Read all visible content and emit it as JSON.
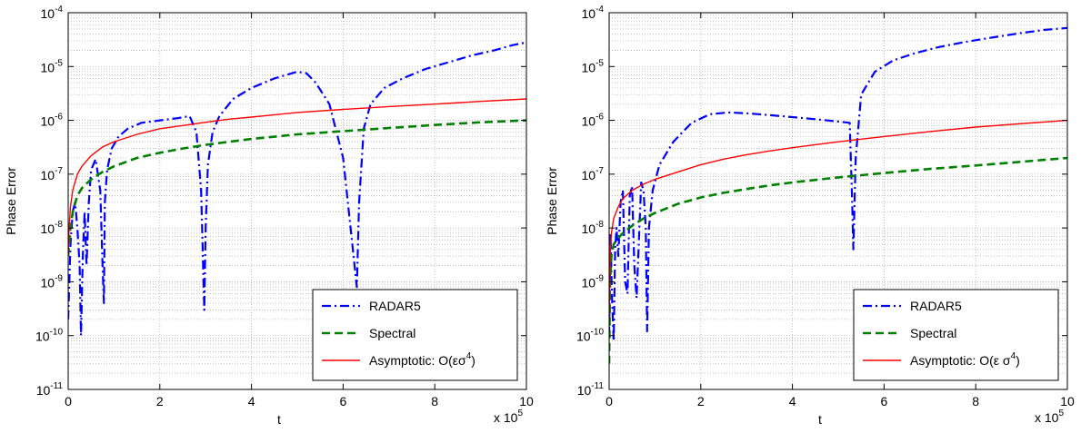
{
  "chart_data": [
    {
      "type": "line",
      "xlabel": "t",
      "ylabel": "Phase Error",
      "x_multiplier_label": "x 10",
      "x_multiplier_exp": "5",
      "xlim": [
        0,
        10
      ],
      "ylim_log10": [
        -11,
        -4
      ],
      "yscale": "log",
      "grid": true,
      "legend_position": "lower-right",
      "x_ticks": [
        "0",
        "2",
        "4",
        "6",
        "8",
        "10"
      ],
      "y_ticks": [
        {
          "base": "10",
          "exp": "-11"
        },
        {
          "base": "10",
          "exp": "-10"
        },
        {
          "base": "10",
          "exp": "-9"
        },
        {
          "base": "10",
          "exp": "-8"
        },
        {
          "base": "10",
          "exp": "-7"
        },
        {
          "base": "10",
          "exp": "-6"
        },
        {
          "base": "10",
          "exp": "-5"
        },
        {
          "base": "10",
          "exp": "-4"
        }
      ],
      "series": [
        {
          "name": "RADAR5",
          "color": "#0000ff",
          "dash": "dashdot",
          "x": [
            0.0,
            0.05,
            0.1,
            0.15,
            0.2,
            0.25,
            0.28,
            0.32,
            0.36,
            0.4,
            0.45,
            0.5,
            0.6,
            0.7,
            0.75,
            0.78,
            0.8,
            0.85,
            0.95,
            1.1,
            1.3,
            1.6,
            2.0,
            2.4,
            2.65,
            2.8,
            2.9,
            2.97,
            3.0,
            3.05,
            3.15,
            3.3,
            3.6,
            4.0,
            4.5,
            5.0,
            5.2,
            5.4,
            5.7,
            6.0,
            6.2,
            6.3,
            6.35,
            6.45,
            6.6,
            6.9,
            7.3,
            7.8,
            8.3,
            8.8,
            9.3,
            9.7,
            10.0
          ],
          "y": [
            2e-10,
            5e-09,
            2e-08,
            3e-08,
            1e-08,
            2e-09,
            1e-10,
            3e-09,
            2e-08,
            2e-09,
            3e-08,
            1.2e-07,
            1.9e-07,
            5e-08,
            2e-09,
            4e-10,
            3e-08,
            1.2e-07,
            3e-07,
            5e-07,
            7e-07,
            9e-07,
            1e-06,
            1.1e-06,
            1.2e-06,
            6e-07,
            5e-08,
            3e-10,
            1e-08,
            1.5e-07,
            6e-07,
            1.2e-06,
            2.5e-06,
            4e-06,
            6e-06,
            8e-06,
            7.5e-06,
            5e-06,
            2e-06,
            2e-07,
            5e-09,
            8e-10,
            3e-08,
            7e-07,
            2e-06,
            4e-06,
            6e-06,
            9e-06,
            1.2e-05,
            1.6e-05,
            2e-05,
            2.5e-05,
            2.8e-05
          ]
        },
        {
          "name": "Spectral",
          "color": "#008000",
          "dash": "dashed",
          "x": [
            0.0,
            0.02,
            0.05,
            0.1,
            0.2,
            0.3,
            0.5,
            0.75,
            1.0,
            1.5,
            2.0,
            2.5,
            3.0,
            3.5,
            4.0,
            5.0,
            6.0,
            7.0,
            8.0,
            9.0,
            10.0
          ],
          "y": [
            3e-09,
            5e-09,
            1e-08,
            2e-08,
            4e-08,
            5.5e-08,
            8e-08,
            1.1e-07,
            1.4e-07,
            2e-07,
            2.5e-07,
            3e-07,
            3.5e-07,
            4e-07,
            4.5e-07,
            5.5e-07,
            6.3e-07,
            7.2e-07,
            8.2e-07,
            9.2e-07,
            1e-06
          ]
        },
        {
          "name": "Asymptotic: O(εσ",
          "name_exp": "4",
          "name_tail": ")",
          "color": "#ff0000",
          "dash": "solid",
          "x": [
            0.0,
            0.02,
            0.05,
            0.1,
            0.2,
            0.3,
            0.5,
            0.75,
            1.0,
            1.5,
            2.0,
            2.5,
            3.0,
            3.5,
            4.0,
            5.0,
            6.0,
            7.0,
            8.0,
            9.0,
            10.0
          ],
          "y": [
            3e-09,
            1e-08,
            2.5e-08,
            5e-08,
            1e-07,
            1.4e-07,
            2.2e-07,
            3.2e-07,
            4e-07,
            5.5e-07,
            7e-07,
            8e-07,
            9.2e-07,
            1.05e-06,
            1.15e-06,
            1.4e-06,
            1.6e-06,
            1.8e-06,
            2e-06,
            2.25e-06,
            2.5e-06
          ]
        }
      ]
    },
    {
      "type": "line",
      "xlabel": "t",
      "ylabel": "Phase Error",
      "x_multiplier_label": "x 10",
      "x_multiplier_exp": "5",
      "xlim": [
        0,
        10
      ],
      "ylim_log10": [
        -11,
        -4
      ],
      "yscale": "log",
      "grid": true,
      "legend_position": "lower-right",
      "x_ticks": [
        "0",
        "2",
        "4",
        "6",
        "8",
        "10"
      ],
      "y_ticks": [
        {
          "base": "10",
          "exp": "-11"
        },
        {
          "base": "10",
          "exp": "-10"
        },
        {
          "base": "10",
          "exp": "-9"
        },
        {
          "base": "10",
          "exp": "-8"
        },
        {
          "base": "10",
          "exp": "-7"
        },
        {
          "base": "10",
          "exp": "-6"
        },
        {
          "base": "10",
          "exp": "-5"
        },
        {
          "base": "10",
          "exp": "-4"
        }
      ],
      "series": [
        {
          "name": "RADAR5",
          "color": "#0000ff",
          "dash": "dashdot",
          "x": [
            0.0,
            0.03,
            0.06,
            0.1,
            0.13,
            0.16,
            0.2,
            0.25,
            0.3,
            0.35,
            0.4,
            0.45,
            0.5,
            0.55,
            0.6,
            0.7,
            0.75,
            0.8,
            0.83,
            0.87,
            0.95,
            1.1,
            1.4,
            1.8,
            2.2,
            2.6,
            3.0,
            3.5,
            4.0,
            4.5,
            5.0,
            5.25,
            5.3,
            5.33,
            5.38,
            5.5,
            5.8,
            6.2,
            6.7,
            7.2,
            7.8,
            8.4,
            9.0,
            9.5,
            10.0
          ],
          "y": [
            1e-10,
            8e-09,
            6e-10,
            8e-11,
            4e-09,
            1e-08,
            3e-09,
            3e-08,
            5e-08,
            1e-09,
            6e-10,
            4e-08,
            6e-08,
            2e-09,
            5e-10,
            7e-08,
            5e-08,
            1e-08,
            1.2e-10,
            1e-08,
            5e-08,
            1.5e-07,
            4e-07,
            9e-07,
            1.3e-06,
            1.4e-06,
            1.35e-06,
            1.25e-06,
            1.15e-06,
            1.05e-06,
            9.5e-07,
            9e-07,
            4e-08,
            4e-09,
            2e-07,
            3e-06,
            8e-06,
            1.3e-05,
            1.8e-05,
            2.3e-05,
            2.9e-05,
            3.5e-05,
            4.2e-05,
            4.8e-05,
            5.2e-05
          ]
        },
        {
          "name": "Spectral",
          "color": "#008000",
          "dash": "dashed",
          "x": [
            0.0,
            0.02,
            0.05,
            0.1,
            0.2,
            0.3,
            0.5,
            0.75,
            1.0,
            1.5,
            2.0,
            2.5,
            3.0,
            3.5,
            4.0,
            5.0,
            6.0,
            7.0,
            8.0,
            9.0,
            10.0
          ],
          "y": [
            3e-11,
            1e-09,
            3e-09,
            5e-09,
            6.5e-09,
            8e-09,
            1.1e-08,
            1.5e-08,
            1.9e-08,
            2.8e-08,
            3.7e-08,
            4.5e-08,
            5.3e-08,
            6.2e-08,
            7e-08,
            8.7e-08,
            1.05e-07,
            1.25e-07,
            1.45e-07,
            1.7e-07,
            2e-07
          ]
        },
        {
          "name": "Asymptotic: O(ε σ",
          "name_exp": "4",
          "name_tail": ")",
          "color": "#ff0000",
          "dash": "solid",
          "x": [
            0.0,
            0.02,
            0.05,
            0.1,
            0.2,
            0.3,
            0.5,
            0.75,
            1.0,
            1.5,
            2.0,
            2.5,
            3.0,
            3.5,
            4.0,
            5.0,
            6.0,
            7.0,
            8.0,
            9.0,
            10.0
          ],
          "y": [
            2e-10,
            3e-09,
            8e-09,
            1.5e-08,
            2.5e-08,
            3.5e-08,
            5e-08,
            6.5e-08,
            8e-08,
            1.1e-07,
            1.5e-07,
            1.9e-07,
            2.3e-07,
            2.7e-07,
            3.1e-07,
            4e-07,
            5e-07,
            6.2e-07,
            7.5e-07,
            8.7e-07,
            1e-06
          ]
        }
      ]
    }
  ]
}
